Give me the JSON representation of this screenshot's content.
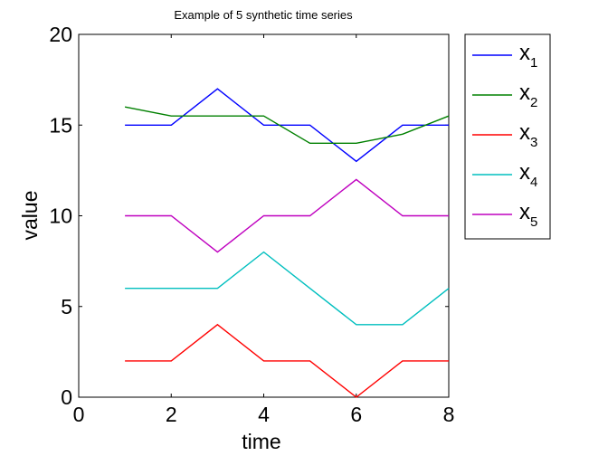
{
  "chart_data": {
    "type": "line",
    "title": "Example of 5 synthetic time series",
    "xlabel": "time",
    "ylabel": "value",
    "xlim": [
      0,
      8
    ],
    "ylim": [
      0,
      20
    ],
    "xticks": [
      "0",
      "2",
      "4",
      "6",
      "8"
    ],
    "yticks": [
      "0",
      "5",
      "10",
      "15",
      "20"
    ],
    "grid": false,
    "legend_position": "outside-top-right",
    "x": [
      1,
      2,
      3,
      4,
      5,
      6,
      7,
      8
    ],
    "series": [
      {
        "name": "x",
        "subscript": "1",
        "color": "#0000ff",
        "values": [
          15,
          15,
          17,
          15,
          15,
          13,
          15,
          15
        ]
      },
      {
        "name": "x",
        "subscript": "2",
        "color": "#008000",
        "values": [
          16,
          15.5,
          15.5,
          15.5,
          14,
          14,
          14.5,
          15.5
        ]
      },
      {
        "name": "x",
        "subscript": "3",
        "color": "#ff0000",
        "values": [
          2,
          2,
          4,
          2,
          2,
          0,
          2,
          2
        ]
      },
      {
        "name": "x",
        "subscript": "4",
        "color": "#00bfbf",
        "values": [
          6,
          6,
          6,
          8,
          6,
          4,
          4,
          6
        ]
      },
      {
        "name": "x",
        "subscript": "5",
        "color": "#bf00bf",
        "values": [
          10,
          10,
          8,
          10,
          10,
          12,
          10,
          10
        ]
      }
    ]
  }
}
